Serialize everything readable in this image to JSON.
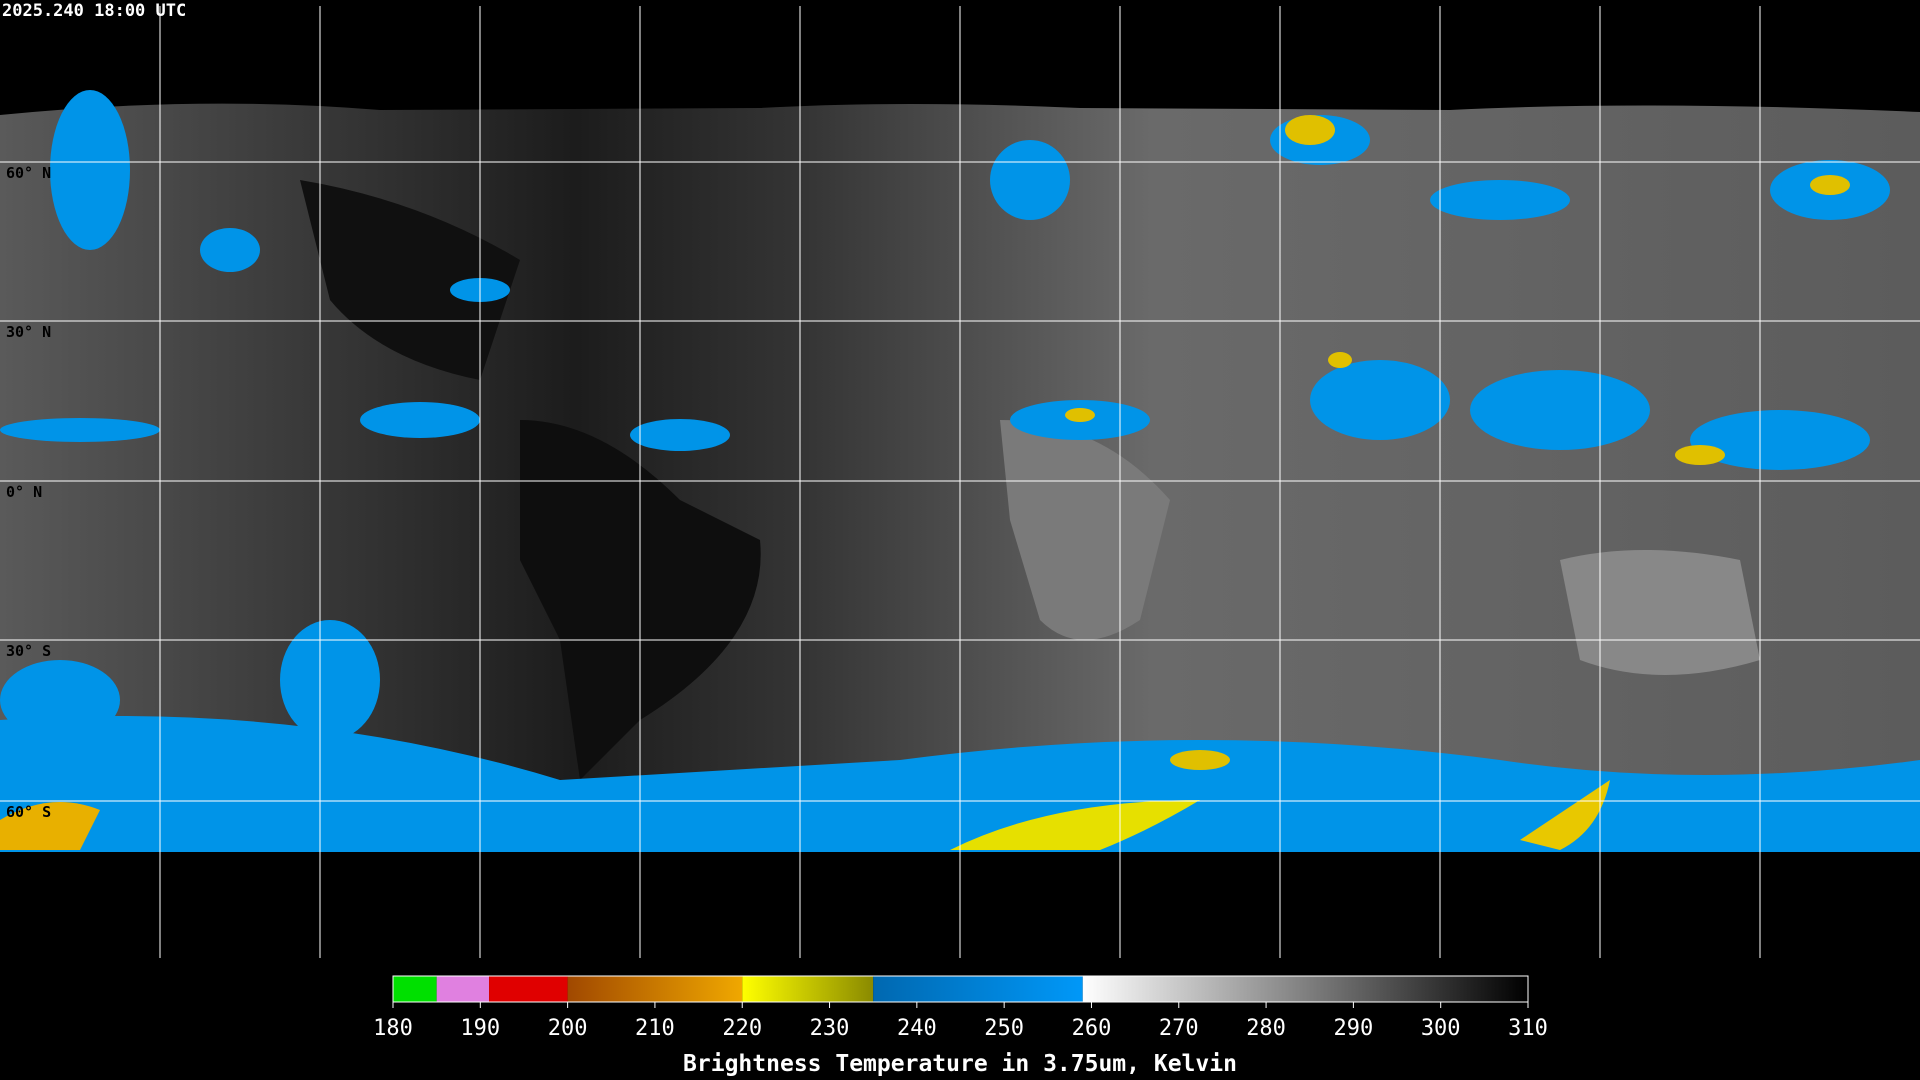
{
  "header": {
    "timestamp": "2025.240 18:00 UTC"
  },
  "map": {
    "lat_labels": [
      "60° N",
      "30° N",
      "0° N",
      "30° S",
      "60° S"
    ]
  },
  "colorbar": {
    "range": [
      180,
      310
    ],
    "ticks": [
      180,
      190,
      200,
      210,
      220,
      230,
      240,
      250,
      260,
      270,
      280,
      290,
      300,
      310
    ],
    "label": "Brightness Temperature in 3.75um, Kelvin",
    "segments": [
      {
        "from": 180,
        "to": 185,
        "colors": [
          "#00e000",
          "#00e000"
        ]
      },
      {
        "from": 185,
        "to": 191,
        "colors": [
          "#e080e0",
          "#e080e0"
        ]
      },
      {
        "from": 191,
        "to": 200,
        "colors": [
          "#e00000",
          "#e00000"
        ]
      },
      {
        "from": 200,
        "to": 220,
        "colors": [
          "#a04800",
          "#f0a800"
        ]
      },
      {
        "from": 220,
        "to": 235,
        "colors": [
          "#ffff00",
          "#8a8a00"
        ]
      },
      {
        "from": 235,
        "to": 259,
        "colors": [
          "#0068b0",
          "#0098f8"
        ]
      },
      {
        "from": 259,
        "to": 310,
        "colors": [
          "#ffffff",
          "#000000"
        ]
      }
    ]
  }
}
